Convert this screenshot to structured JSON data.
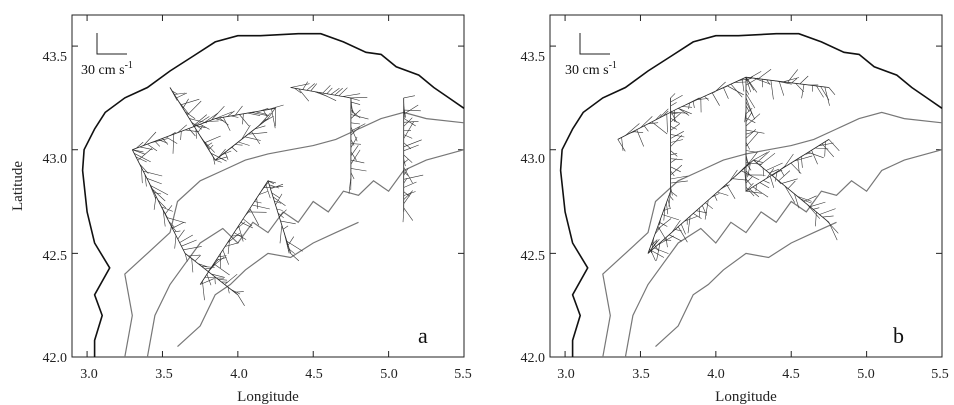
{
  "panels": [
    {
      "id": "a",
      "letter": "a",
      "x_label": "Longitude",
      "y_label": "Latitude",
      "x_ticks": [
        "3.0",
        "3.5",
        "4.0",
        "4.5",
        "5.0",
        "5.5"
      ],
      "y_ticks": [
        "42.0",
        "42.5",
        "43.0",
        "43.5"
      ],
      "scale_label": "30 cm s",
      "scale_exp": "-1"
    },
    {
      "id": "b",
      "letter": "b",
      "x_label": "Longitude",
      "y_label": "",
      "x_ticks": [
        "3.0",
        "3.5",
        "4.0",
        "4.5",
        "5.0",
        "5.5"
      ],
      "y_ticks": [
        "42.0",
        "42.5",
        "43.0",
        "43.5"
      ],
      "scale_label": "30 cm s",
      "scale_exp": "-1"
    }
  ],
  "map_data": {
    "lon_range": [
      2.9,
      5.5
    ],
    "lat_range": [
      42.0,
      43.65
    ],
    "coastline": [
      [
        3.05,
        42.0
      ],
      [
        3.05,
        42.08
      ],
      [
        3.1,
        42.2
      ],
      [
        3.05,
        42.3
      ],
      [
        3.15,
        42.43
      ],
      [
        3.05,
        42.55
      ],
      [
        3.0,
        42.7
      ],
      [
        2.97,
        42.9
      ],
      [
        2.98,
        43.0
      ],
      [
        3.05,
        43.1
      ],
      [
        3.12,
        43.18
      ],
      [
        3.25,
        43.25
      ],
      [
        3.4,
        43.3
      ],
      [
        3.55,
        43.38
      ],
      [
        3.7,
        43.45
      ],
      [
        3.85,
        43.52
      ],
      [
        4.0,
        43.55
      ],
      [
        4.15,
        43.55
      ],
      [
        4.4,
        43.56
      ],
      [
        4.55,
        43.56
      ],
      [
        4.7,
        43.52
      ],
      [
        4.85,
        43.47
      ],
      [
        4.95,
        43.46
      ],
      [
        5.05,
        43.4
      ],
      [
        5.2,
        43.36
      ],
      [
        5.3,
        43.3
      ],
      [
        5.4,
        43.25
      ],
      [
        5.5,
        43.2
      ]
    ],
    "isobaths": [
      [
        [
          3.25,
          42.0
        ],
        [
          3.3,
          42.2
        ],
        [
          3.25,
          42.4
        ],
        [
          3.4,
          42.5
        ],
        [
          3.55,
          42.6
        ],
        [
          3.6,
          42.75
        ],
        [
          3.75,
          42.85
        ],
        [
          3.9,
          42.9
        ],
        [
          4.05,
          42.95
        ],
        [
          4.2,
          42.98
        ],
        [
          4.35,
          43.0
        ],
        [
          4.5,
          43.02
        ],
        [
          4.65,
          43.05
        ],
        [
          4.8,
          43.1
        ],
        [
          4.95,
          43.15
        ],
        [
          5.1,
          43.18
        ],
        [
          5.25,
          43.15
        ],
        [
          5.5,
          43.13
        ]
      ],
      [
        [
          3.4,
          42.0
        ],
        [
          3.45,
          42.2
        ],
        [
          3.55,
          42.35
        ],
        [
          3.65,
          42.45
        ],
        [
          3.75,
          42.55
        ],
        [
          3.9,
          42.62
        ],
        [
          4.0,
          42.55
        ],
        [
          4.1,
          42.65
        ],
        [
          4.2,
          42.6
        ],
        [
          4.3,
          42.7
        ],
        [
          4.4,
          42.65
        ],
        [
          4.5,
          42.75
        ],
        [
          4.6,
          42.7
        ],
        [
          4.7,
          42.8
        ],
        [
          4.8,
          42.78
        ],
        [
          4.9,
          42.85
        ],
        [
          5.0,
          42.8
        ],
        [
          5.1,
          42.9
        ],
        [
          5.25,
          42.95
        ],
        [
          5.5,
          43.0
        ]
      ],
      [
        [
          3.6,
          42.05
        ],
        [
          3.75,
          42.15
        ],
        [
          3.85,
          42.3
        ],
        [
          3.95,
          42.35
        ],
        [
          4.05,
          42.42
        ],
        [
          4.2,
          42.5
        ],
        [
          4.35,
          42.48
        ],
        [
          4.5,
          42.55
        ],
        [
          4.65,
          42.6
        ],
        [
          4.8,
          42.65
        ]
      ]
    ],
    "vector_tracks_panel_a": [
      [
        [
          3.3,
          43.0
        ],
        [
          3.85,
          43.15
        ],
        [
          4.25,
          43.2
        ]
      ],
      [
        [
          3.55,
          43.3
        ],
        [
          3.85,
          42.95
        ],
        [
          4.2,
          43.15
        ]
      ],
      [
        [
          3.3,
          43.0
        ],
        [
          3.65,
          42.5
        ],
        [
          4.0,
          42.3
        ]
      ],
      [
        [
          3.75,
          42.35
        ],
        [
          4.2,
          42.85
        ],
        [
          4.35,
          42.5
        ]
      ],
      [
        [
          4.35,
          43.3
        ],
        [
          4.75,
          43.25
        ],
        [
          4.75,
          42.85
        ]
      ],
      [
        [
          5.1,
          43.25
        ],
        [
          5.1,
          42.7
        ]
      ]
    ],
    "vector_tracks_panel_b": [
      [
        [
          3.35,
          43.05
        ],
        [
          3.75,
          43.2
        ],
        [
          4.2,
          43.35
        ],
        [
          4.75,
          43.3
        ]
      ],
      [
        [
          3.7,
          43.25
        ],
        [
          3.7,
          42.8
        ],
        [
          3.55,
          42.5
        ]
      ],
      [
        [
          3.55,
          42.5
        ],
        [
          4.25,
          42.95
        ],
        [
          4.75,
          42.65
        ]
      ],
      [
        [
          4.2,
          43.35
        ],
        [
          4.2,
          42.8
        ],
        [
          4.75,
          43.05
        ]
      ]
    ]
  }
}
